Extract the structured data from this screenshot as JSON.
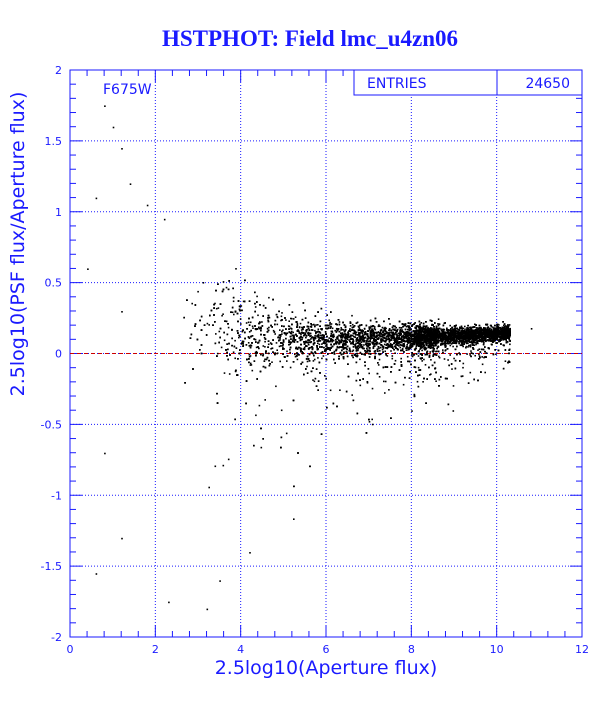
{
  "title": "HSTPHOT: Field lmc_u4zn06",
  "colors": {
    "axis": "#1a1aff",
    "grid": "#1a1aff",
    "points": "#000000",
    "zero_line": "#cc0000",
    "background": "#ffffff"
  },
  "chart_data": {
    "type": "scatter",
    "title": "HSTPHOT: Field lmc_u4zn06",
    "xlabel": "2.5log10(Aperture flux)",
    "ylabel": "2.5log10(PSF flux/Aperture flux)",
    "xlim": [
      0,
      12
    ],
    "ylim": [
      -2,
      2
    ],
    "xticks": [
      0,
      2,
      4,
      6,
      8,
      10,
      12
    ],
    "xtick_labels": [
      "0",
      "2",
      "4",
      "6",
      "8",
      "10",
      "12"
    ],
    "yticks": [
      -2,
      -1.5,
      -1,
      -0.5,
      0,
      0.5,
      1,
      1.5,
      2
    ],
    "ytick_labels": [
      "-2",
      "-1.5",
      "-1",
      "-0.5",
      "0",
      "0.5",
      "1",
      "1.5",
      "2"
    ],
    "grid": true,
    "reference_line": {
      "y": 0,
      "style": "dashed",
      "color": "#cc0000"
    },
    "annotation": "F675W",
    "stats_box": {
      "label": "ENTRIES",
      "value": "24650"
    },
    "entries": 24650,
    "ridge": [
      {
        "x": 3.0,
        "y": 0.25,
        "spread": 0.3
      },
      {
        "x": 4.0,
        "y": 0.14,
        "spread": 0.22
      },
      {
        "x": 5.0,
        "y": 0.12,
        "spread": 0.16
      },
      {
        "x": 6.0,
        "y": 0.11,
        "spread": 0.12
      },
      {
        "x": 7.0,
        "y": 0.11,
        "spread": 0.09
      },
      {
        "x": 8.0,
        "y": 0.12,
        "spread": 0.07
      },
      {
        "x": 9.0,
        "y": 0.13,
        "spread": 0.05
      },
      {
        "x": 10.0,
        "y": 0.15,
        "spread": 0.04
      }
    ],
    "x_range_main": [
      2.6,
      10.3
    ],
    "sample_outliers": [
      {
        "x": 0.8,
        "y": 1.75
      },
      {
        "x": 1.0,
        "y": 1.6
      },
      {
        "x": 1.2,
        "y": 1.45
      },
      {
        "x": 0.6,
        "y": 1.1
      },
      {
        "x": 1.4,
        "y": 1.2
      },
      {
        "x": 1.8,
        "y": 1.05
      },
      {
        "x": 2.2,
        "y": 0.95
      },
      {
        "x": 1.2,
        "y": 0.3
      },
      {
        "x": 0.4,
        "y": 0.6
      },
      {
        "x": 0.8,
        "y": -0.7
      },
      {
        "x": 1.2,
        "y": -1.3
      },
      {
        "x": 0.6,
        "y": -1.55
      },
      {
        "x": 3.5,
        "y": -1.6
      },
      {
        "x": 3.2,
        "y": -1.8
      },
      {
        "x": 4.2,
        "y": -1.4
      },
      {
        "x": 2.3,
        "y": -1.75
      },
      {
        "x": 10.8,
        "y": 0.18
      }
    ]
  }
}
